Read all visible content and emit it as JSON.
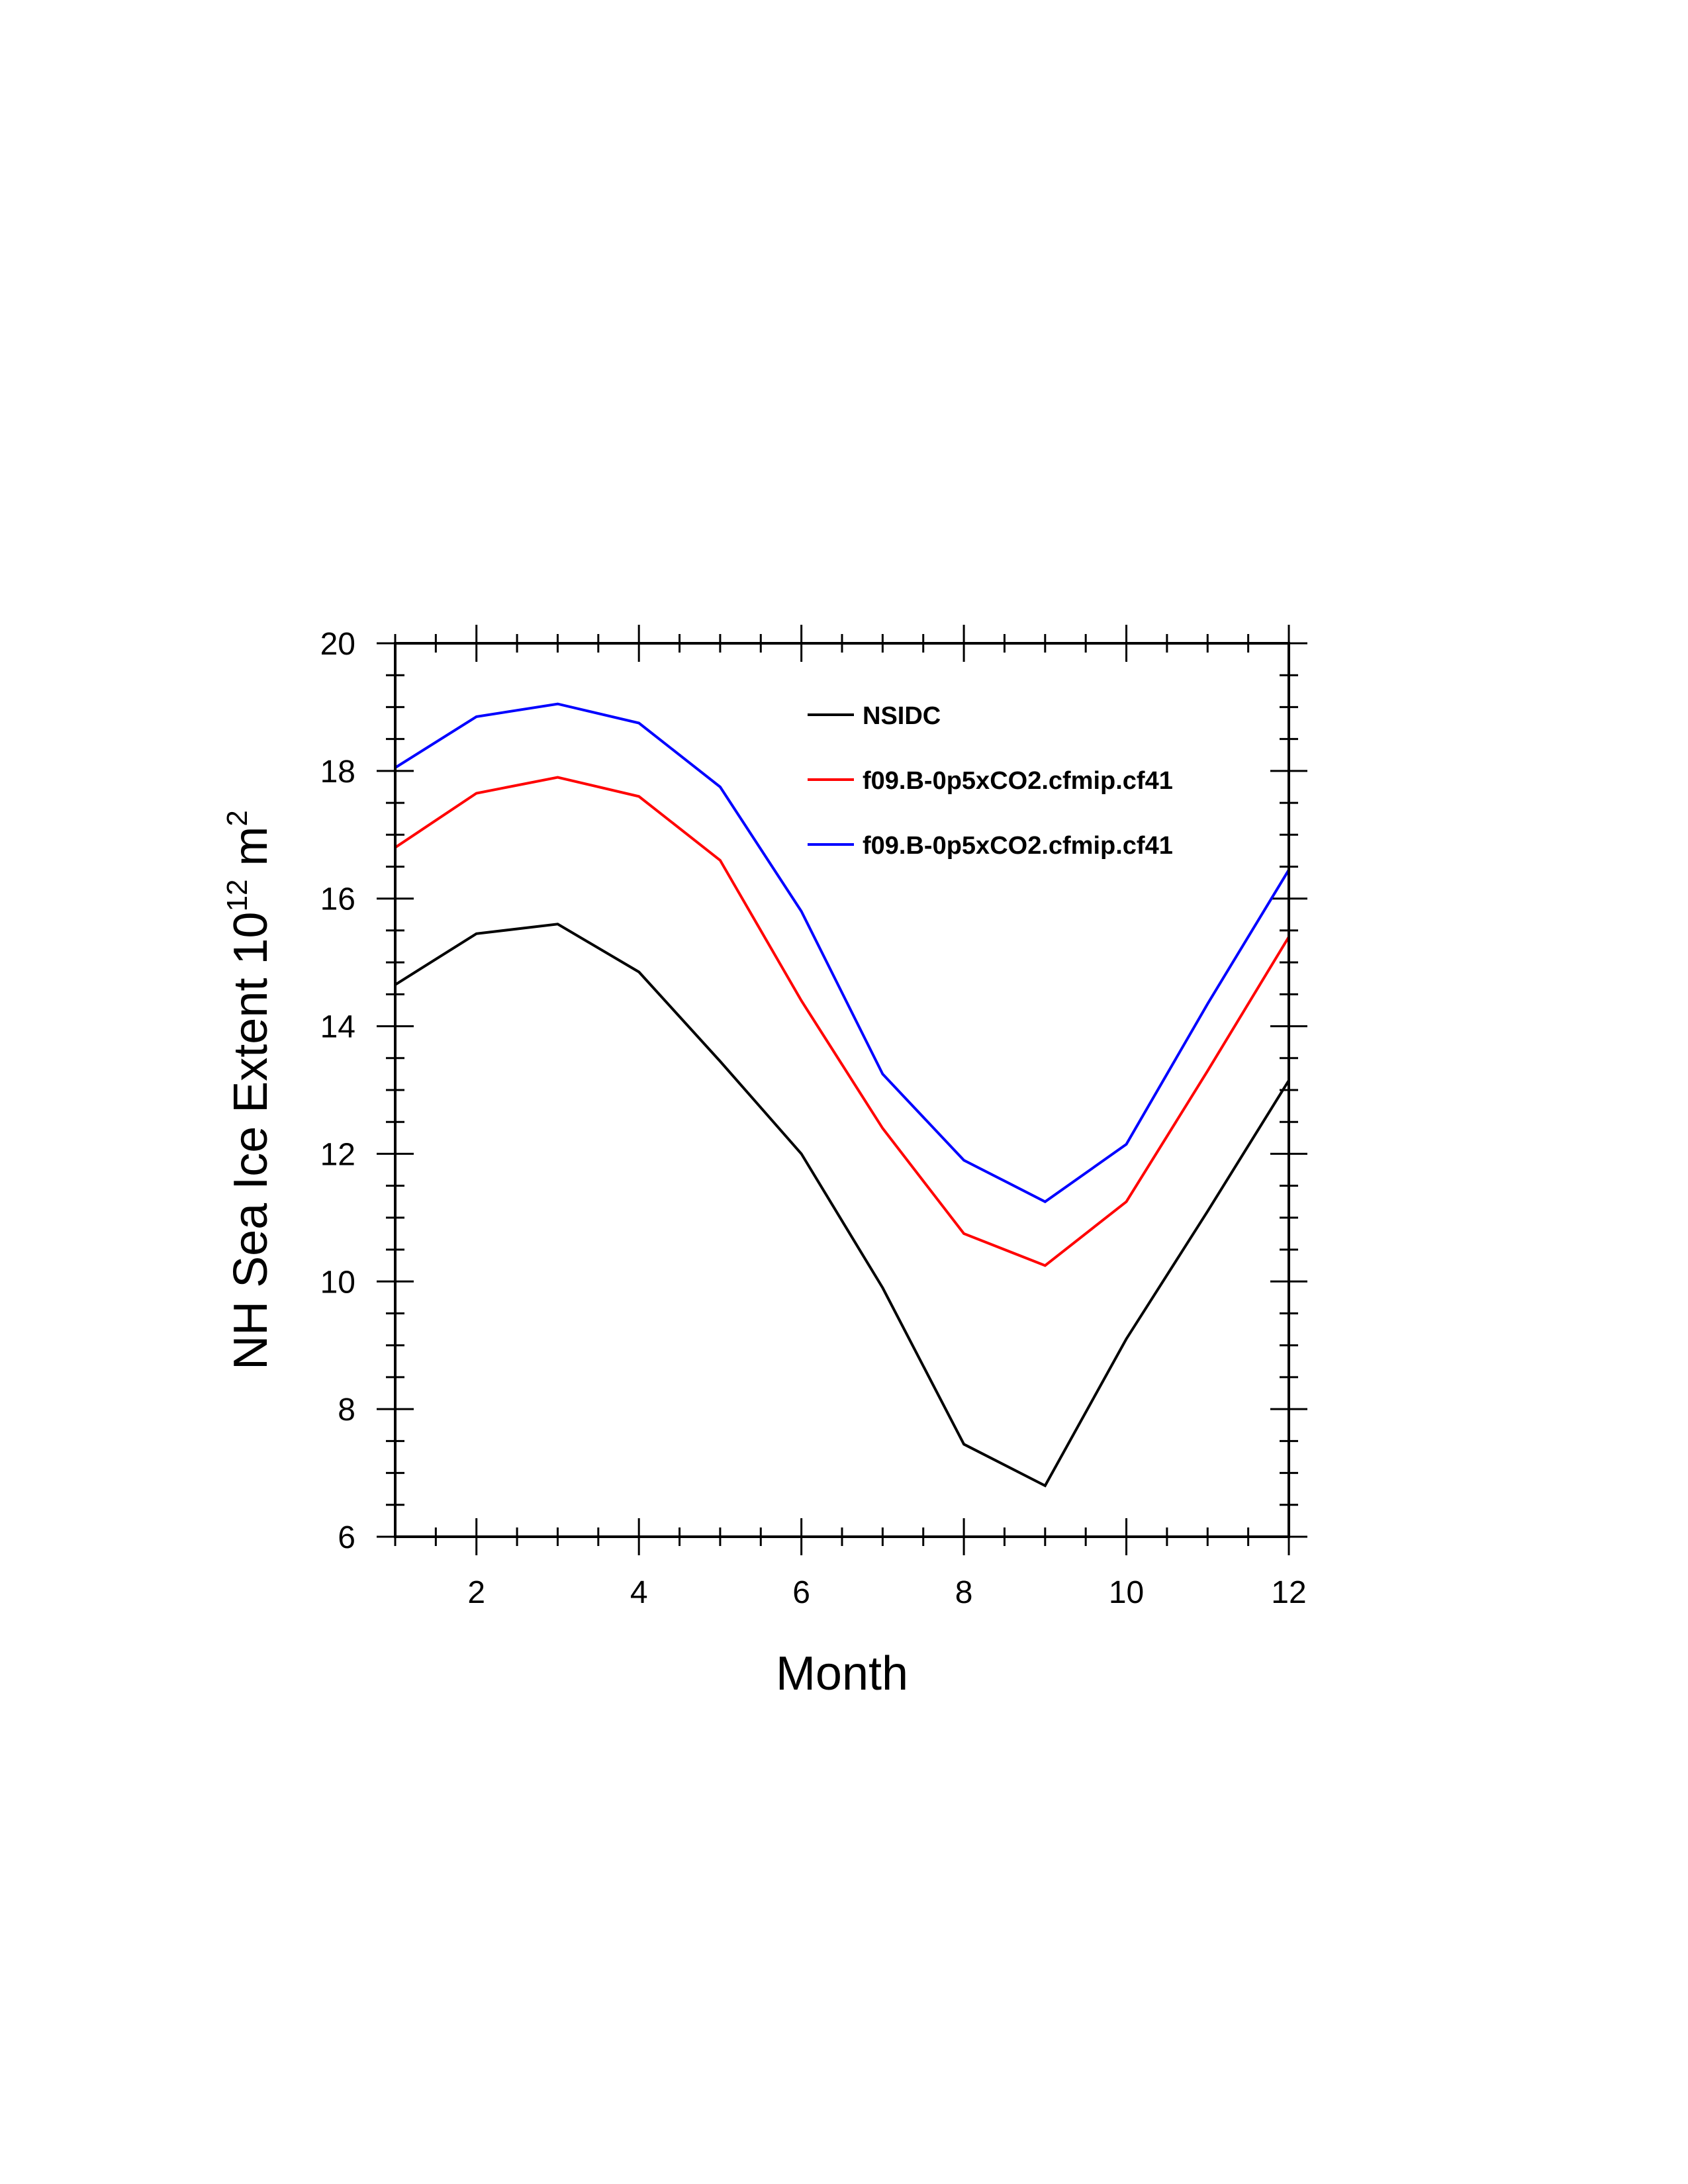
{
  "chart_data": {
    "type": "line",
    "xlabel": "Month",
    "ylabel_main": "NH Sea Ice Extent 10",
    "ylabel_sup1": "12",
    "ylabel_unit": " m",
    "ylabel_sup2": "2",
    "xlim": [
      1,
      12
    ],
    "ylim": [
      6,
      20
    ],
    "xticks": [
      2,
      4,
      6,
      8,
      10,
      12
    ],
    "yticks": [
      6,
      8,
      10,
      12,
      14,
      16,
      18,
      20
    ],
    "x": [
      1,
      2,
      3,
      4,
      5,
      6,
      7,
      8,
      9,
      10,
      11,
      12
    ],
    "legend_position": "top-right",
    "series": [
      {
        "name": "NSIDC",
        "color": "#000000",
        "values": [
          14.65,
          15.45,
          15.6,
          14.85,
          13.45,
          12.0,
          9.9,
          7.45,
          6.8,
          9.1,
          11.1,
          13.15
        ]
      },
      {
        "name": "f09.B-0p5xCO2.cfmip.cf41",
        "color": "#ff0000",
        "values": [
          16.8,
          17.65,
          17.9,
          17.6,
          16.6,
          14.4,
          12.4,
          10.75,
          10.25,
          11.25,
          13.3,
          15.4
        ]
      },
      {
        "name": "f09.B-0p5xCO2.cfmip.cf41",
        "color": "#0000ff",
        "values": [
          18.05,
          18.85,
          19.05,
          18.75,
          17.75,
          15.8,
          13.25,
          11.9,
          11.25,
          12.15,
          14.35,
          16.45
        ]
      }
    ]
  }
}
